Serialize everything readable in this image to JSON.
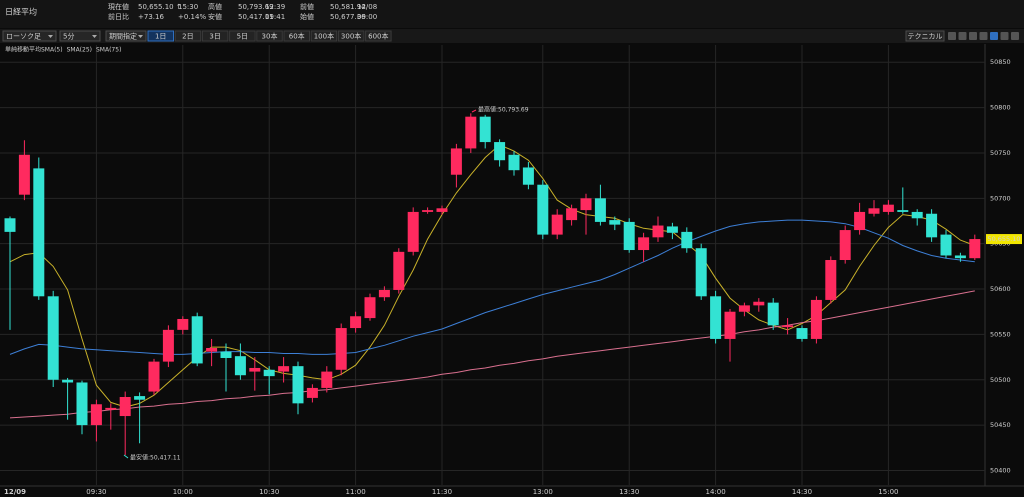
{
  "header": {
    "title": "日経平均",
    "quote": [
      {
        "label": "現在値",
        "value": "50,655.10 ↑",
        "extra": "15:30"
      },
      {
        "label": "前日比",
        "value": "+73.16",
        "extra": "+0.14%"
      },
      {
        "label": "高値",
        "value": "50,793.69",
        "extra": "12:39"
      },
      {
        "label": "安値",
        "value": "50,417.11",
        "extra": "09:41"
      },
      {
        "label": "前値",
        "value": "50,581.94",
        "extra": "12/08"
      },
      {
        "label": "始値",
        "value": "50,677.36",
        "extra": "09:00"
      }
    ]
  },
  "toolbar": {
    "selects": [
      "ローソク足",
      "5分",
      "期間指定"
    ],
    "ranges": [
      "1日",
      "2日",
      "3日",
      "5日",
      "30本",
      "60本",
      "100本",
      "300本",
      "600本"
    ],
    "technical": "テクニカル"
  },
  "chart_data": {
    "type": "candlestick",
    "indicator_title": "単純移動平均",
    "categories": [
      "12/09",
      null,
      null,
      null,
      null,
      null,
      "09:30",
      null,
      null,
      null,
      null,
      null,
      "10:00",
      null,
      null,
      null,
      null,
      null,
      "10:30",
      null,
      null,
      null,
      null,
      null,
      "11:00",
      null,
      null,
      null,
      null,
      null,
      "11:30",
      null,
      null,
      null,
      null,
      null,
      null,
      "13:00",
      null,
      null,
      null,
      null,
      null,
      "13:30",
      null,
      null,
      null,
      null,
      null,
      "14:00",
      null,
      null,
      null,
      null,
      null,
      "14:30",
      null,
      null,
      null,
      null,
      null,
      "15:00",
      null,
      null,
      null,
      null,
      null,
      null
    ],
    "open": [
      50678,
      50704,
      50733,
      50592,
      50500,
      50497,
      50450,
      50467,
      50460,
      50482,
      50487,
      50520,
      50555,
      50570,
      50531,
      50531,
      50526,
      50509,
      50511,
      50509,
      50515,
      50480,
      50491,
      50511,
      50557,
      50568,
      50591,
      50599,
      50641,
      50685,
      50685,
      50726,
      50755,
      50790,
      50762,
      50748,
      50734,
      50715,
      50660,
      50676,
      50687,
      50700,
      50676,
      50674,
      50643,
      50657,
      50669,
      50663,
      50645,
      50592,
      50545,
      50575,
      50582,
      50585,
      50558,
      50557,
      50545,
      50588,
      50632,
      50665,
      50683,
      50685,
      50687,
      50685,
      50683,
      50660,
      50637,
      50634
    ],
    "high": [
      50680,
      50764,
      50745,
      50598,
      50502,
      50499,
      50478,
      50474,
      50487,
      50486,
      50523,
      50560,
      50570,
      50574,
      50545,
      50540,
      50540,
      50525,
      50515,
      50525,
      50520,
      50495,
      50515,
      50562,
      50575,
      50595,
      50603,
      50645,
      50690,
      50690,
      50692,
      50760,
      50793.69,
      50792,
      50765,
      50752,
      50740,
      50720,
      50688,
      50693,
      50705,
      50715,
      50680,
      50678,
      50662,
      50680,
      50673,
      50668,
      50650,
      50598,
      50578,
      50585,
      50590,
      50590,
      50568,
      50560,
      50592,
      50636,
      50670,
      50695,
      50698,
      50698,
      50712,
      50688,
      50688,
      50665,
      50640,
      50660
    ],
    "low": [
      50555,
      50698,
      50588,
      50492,
      50456,
      50440,
      50432,
      50445,
      50417.11,
      50430,
      50483,
      50514,
      50550,
      50515,
      50515,
      50487,
      50500,
      50488,
      50484,
      50497,
      50462,
      50475,
      50486,
      50505,
      50552,
      50565,
      50587,
      50595,
      50637,
      50683,
      50682,
      50712,
      50750,
      50755,
      50735,
      50725,
      50710,
      50655,
      50655,
      50670,
      50660,
      50670,
      50665,
      50640,
      50630,
      50652,
      50655,
      50640,
      50588,
      50540,
      50520,
      50570,
      50575,
      50555,
      50550,
      50542,
      50540,
      50584,
      50628,
      50660,
      50680,
      50682,
      50683,
      50670,
      50652,
      50634,
      50630,
      50632
    ],
    "close": [
      50663,
      50748,
      50592,
      50500,
      50497,
      50450,
      50473,
      50469,
      50481,
      50478,
      50520,
      50555,
      50567,
      50518,
      50535,
      50524,
      50505,
      50513,
      50504,
      50515,
      50474,
      50491,
      50509,
      50557,
      50570,
      50591,
      50599,
      50641,
      50685,
      50687,
      50689,
      50755,
      50790,
      50762,
      50742,
      50731,
      50715,
      50660,
      50682,
      50689,
      50700,
      50674,
      50671,
      50643,
      50657,
      50670,
      50662,
      50645,
      50592,
      50545,
      50575,
      50582,
      50586,
      50560,
      50560,
      50545,
      50588,
      50632,
      50665,
      50685,
      50689,
      50693,
      50685,
      50678,
      50657,
      50637,
      50634,
      50655.1
    ],
    "up_color": "#ff2a5f",
    "down_color": "#33e3d3",
    "series": [
      {
        "name": "SMA(5)",
        "color": "#c9b22a",
        "values": [
          50630,
          50638,
          50640,
          50625,
          50599,
          50545,
          50494,
          50475,
          50470,
          50474,
          50483,
          50497,
          50511,
          50525,
          50536,
          50536,
          50532,
          50522,
          50511,
          50507,
          50505,
          50502,
          50500,
          50506,
          50516,
          50536,
          50560,
          50592,
          50621,
          50655,
          50682,
          50706,
          50726,
          50745,
          50759,
          50752,
          50742,
          50722,
          50698,
          50688,
          50682,
          50680,
          50678,
          50672,
          50667,
          50665,
          50663,
          50650,
          50637,
          50612,
          50590,
          50577,
          50566,
          50560,
          50555,
          50562,
          50571,
          50585,
          50599,
          50625,
          50648,
          50668,
          50682,
          50680,
          50676,
          50666,
          50654,
          50648
        ]
      },
      {
        "name": "SMA(25)",
        "color": "#3d7fd6",
        "values": [
          50528,
          50534,
          50539,
          50538,
          50536,
          50534,
          50533,
          50532,
          50531,
          50530,
          50529,
          50528,
          50528,
          50529,
          50530,
          50531,
          50531,
          50530,
          50530,
          50529,
          50529,
          50528,
          50528,
          50529,
          50530,
          50534,
          50538,
          50543,
          50548,
          50552,
          50556,
          50562,
          50568,
          50574,
          50579,
          50584,
          50589,
          50594,
          50598,
          50602,
          50606,
          50610,
          50616,
          50623,
          50630,
          50637,
          50645,
          50652,
          50658,
          50664,
          50669,
          50672,
          50674,
          50675,
          50676,
          50676,
          50675,
          50674,
          50672,
          50668,
          50662,
          50656,
          50648,
          50642,
          50637,
          50634,
          50632,
          50630
        ]
      },
      {
        "name": "SMA(75)",
        "color": "#d9708f",
        "values": [
          50458,
          50459,
          50460,
          50461,
          50462,
          50464,
          50465,
          50467,
          50468,
          50470,
          50471,
          50473,
          50474,
          50476,
          50477,
          50479,
          50480,
          50482,
          50483,
          50485,
          50486,
          50488,
          50489,
          50491,
          50493,
          50495,
          50497,
          50499,
          50501,
          50503,
          50506,
          50508,
          50511,
          50513,
          50516,
          50518,
          50521,
          50523,
          50526,
          50528,
          50530,
          50532,
          50534,
          50536,
          50538,
          50540,
          50542,
          50544,
          50546,
          50548,
          50550,
          50553,
          50555,
          50558,
          50560,
          50563,
          50565,
          50568,
          50571,
          50574,
          50577,
          50580,
          50583,
          50586,
          50589,
          50592,
          50595,
          50598
        ]
      }
    ],
    "annotations": [
      {
        "text": "最高値:50,793.69"
      },
      {
        "text": "最安値:50,417.11"
      }
    ],
    "last_price": {
      "value": 50655.1,
      "label": "50,655.10"
    },
    "ylim": [
      50384,
      50869
    ],
    "yticks": [
      50400,
      50450,
      50500,
      50550,
      50600,
      50650,
      50700,
      50750,
      50800,
      50850
    ],
    "grid": true
  }
}
